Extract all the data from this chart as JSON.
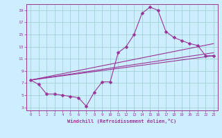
{
  "xlabel": "Windchill (Refroidissement éolien,°C)",
  "bg_color": "#cceeff",
  "line_color": "#993399",
  "grid_color": "#99cccc",
  "xlim": [
    -0.5,
    23.5
  ],
  "ylim": [
    2.5,
    20.0
  ],
  "xticks": [
    0,
    1,
    2,
    3,
    4,
    5,
    6,
    7,
    8,
    9,
    10,
    11,
    12,
    13,
    14,
    15,
    16,
    17,
    18,
    19,
    20,
    21,
    22,
    23
  ],
  "yticks": [
    3,
    5,
    7,
    9,
    11,
    13,
    15,
    17,
    19
  ],
  "series1_x": [
    0,
    1,
    2,
    3,
    4,
    5,
    6,
    7,
    8,
    9,
    10,
    11,
    12,
    13,
    14,
    15,
    16,
    17,
    18,
    19,
    20,
    21,
    22,
    23
  ],
  "series1_y": [
    7.5,
    6.8,
    5.2,
    5.2,
    5.0,
    4.8,
    4.6,
    3.2,
    5.5,
    7.2,
    7.2,
    12.0,
    13.0,
    15.0,
    18.5,
    19.5,
    19.0,
    15.5,
    14.5,
    14.0,
    13.5,
    13.2,
    11.5,
    11.5
  ],
  "line2_x": [
    0,
    23
  ],
  "line2_y": [
    7.5,
    13.5
  ],
  "line3_x": [
    0,
    23
  ],
  "line3_y": [
    7.5,
    12.0
  ],
  "line4_x": [
    0,
    23
  ],
  "line4_y": [
    7.5,
    11.5
  ],
  "markersize": 2.5,
  "linewidth": 0.8
}
